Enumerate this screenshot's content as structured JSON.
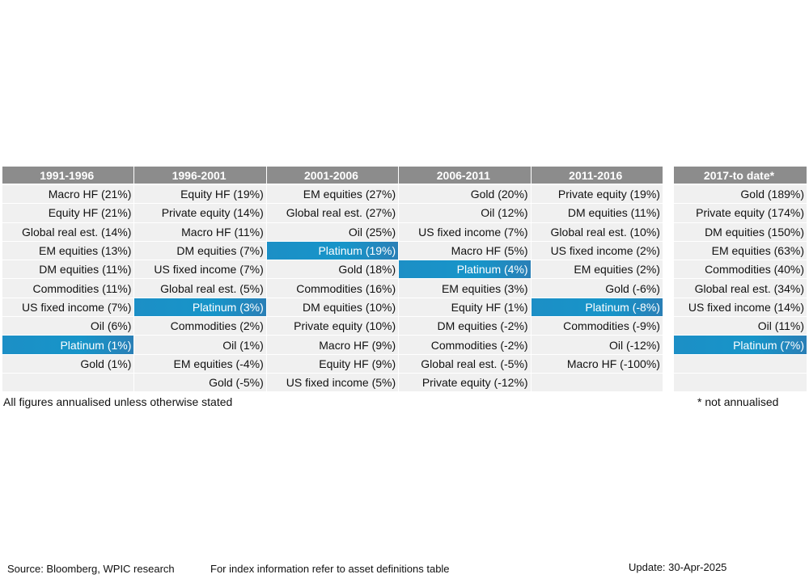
{
  "chart_data": {
    "type": "table",
    "columns": [
      {
        "period": "1991-1996",
        "entries": [
          {
            "label": "Macro HF (21%)",
            "asset": "Macro HF",
            "value": 21
          },
          {
            "label": "Equity HF (21%)",
            "asset": "Equity HF",
            "value": 21
          },
          {
            "label": "Global real est. (14%)",
            "asset": "Global real est.",
            "value": 14
          },
          {
            "label": "EM equities (13%)",
            "asset": "EM equities",
            "value": 13
          },
          {
            "label": "DM equities (11%)",
            "asset": "DM equities",
            "value": 11
          },
          {
            "label": "Commodities (11%)",
            "asset": "Commodities",
            "value": 11
          },
          {
            "label": "US fixed income (7%)",
            "asset": "US fixed income",
            "value": 7
          },
          {
            "label": "Oil (6%)",
            "asset": "Oil",
            "value": 6
          },
          {
            "label": "Platinum (1%)",
            "asset": "Platinum",
            "value": 1,
            "highlight": true
          },
          {
            "label": "Gold (1%)",
            "asset": "Gold",
            "value": 1
          }
        ]
      },
      {
        "period": "1996-2001",
        "entries": [
          {
            "label": "Equity HF (19%)",
            "asset": "Equity HF",
            "value": 19
          },
          {
            "label": "Private equity (14%)",
            "asset": "Private equity",
            "value": 14
          },
          {
            "label": "Macro HF (11%)",
            "asset": "Macro HF",
            "value": 11
          },
          {
            "label": "DM equities (7%)",
            "asset": "DM equities",
            "value": 7
          },
          {
            "label": "US fixed income (7%)",
            "asset": "US fixed income",
            "value": 7
          },
          {
            "label": "Global real est. (5%)",
            "asset": "Global real est.",
            "value": 5
          },
          {
            "label": "Platinum (3%)",
            "asset": "Platinum",
            "value": 3,
            "highlight": true
          },
          {
            "label": "Commodities (2%)",
            "asset": "Commodities",
            "value": 2
          },
          {
            "label": "Oil (1%)",
            "asset": "Oil",
            "value": 1
          },
          {
            "label": "EM equities (-4%)",
            "asset": "EM equities",
            "value": -4
          },
          {
            "label": "Gold (-5%)",
            "asset": "Gold",
            "value": -5
          }
        ]
      },
      {
        "period": "2001-2006",
        "entries": [
          {
            "label": "EM equities (27%)",
            "asset": "EM equities",
            "value": 27
          },
          {
            "label": "Global real est. (27%)",
            "asset": "Global real est.",
            "value": 27
          },
          {
            "label": "Oil (25%)",
            "asset": "Oil",
            "value": 25
          },
          {
            "label": "Platinum (19%)",
            "asset": "Platinum",
            "value": 19,
            "highlight": true
          },
          {
            "label": "Gold (18%)",
            "asset": "Gold",
            "value": 18
          },
          {
            "label": "Commodities (16%)",
            "asset": "Commodities",
            "value": 16
          },
          {
            "label": "DM equities (10%)",
            "asset": "DM equities",
            "value": 10
          },
          {
            "label": "Private equity (10%)",
            "asset": "Private equity",
            "value": 10
          },
          {
            "label": "Macro HF (9%)",
            "asset": "Macro HF",
            "value": 9
          },
          {
            "label": "Equity HF (9%)",
            "asset": "Equity HF",
            "value": 9
          },
          {
            "label": "US fixed income (5%)",
            "asset": "US fixed income",
            "value": 5
          }
        ]
      },
      {
        "period": "2006-2011",
        "entries": [
          {
            "label": "Gold (20%)",
            "asset": "Gold",
            "value": 20
          },
          {
            "label": "Oil (12%)",
            "asset": "Oil",
            "value": 12
          },
          {
            "label": "US fixed income (7%)",
            "asset": "US fixed income",
            "value": 7
          },
          {
            "label": "Macro HF (5%)",
            "asset": "Macro HF",
            "value": 5
          },
          {
            "label": "Platinum (4%)",
            "asset": "Platinum",
            "value": 4,
            "highlight": true
          },
          {
            "label": "EM equities (3%)",
            "asset": "EM equities",
            "value": 3
          },
          {
            "label": "Equity HF (1%)",
            "asset": "Equity HF",
            "value": 1
          },
          {
            "label": "DM equities (-2%)",
            "asset": "DM equities",
            "value": -2
          },
          {
            "label": "Commodities (-2%)",
            "asset": "Commodities",
            "value": -2
          },
          {
            "label": "Global real est. (-5%)",
            "asset": "Global real est.",
            "value": -5
          },
          {
            "label": "Private equity (-12%)",
            "asset": "Private equity",
            "value": -12
          }
        ]
      },
      {
        "period": "2011-2016",
        "entries": [
          {
            "label": "Private equity (19%)",
            "asset": "Private equity",
            "value": 19
          },
          {
            "label": "DM equities (11%)",
            "asset": "DM equities",
            "value": 11
          },
          {
            "label": "Global real est. (10%)",
            "asset": "Global real est.",
            "value": 10
          },
          {
            "label": "US fixed income (2%)",
            "asset": "US fixed income",
            "value": 2
          },
          {
            "label": "EM equities (2%)",
            "asset": "EM equities",
            "value": 2
          },
          {
            "label": "Gold (-6%)",
            "asset": "Gold",
            "value": -6
          },
          {
            "label": "Platinum (-8%)",
            "asset": "Platinum",
            "value": -8,
            "highlight": true
          },
          {
            "label": "Commodities (-9%)",
            "asset": "Commodities",
            "value": -9
          },
          {
            "label": "Oil (-12%)",
            "asset": "Oil",
            "value": -12
          },
          {
            "label": "Macro HF (-100%)",
            "asset": "Macro HF",
            "value": -100
          }
        ]
      }
    ],
    "side_column": {
      "period": "2017-to date*",
      "entries": [
        {
          "label": "Gold (189%)",
          "asset": "Gold",
          "value": 189
        },
        {
          "label": "Private equity (174%)",
          "asset": "Private equity",
          "value": 174
        },
        {
          "label": "DM equities (150%)",
          "asset": "DM equities",
          "value": 150
        },
        {
          "label": "EM equities (63%)",
          "asset": "EM equities",
          "value": 63
        },
        {
          "label": "Commodities (40%)",
          "asset": "Commodities",
          "value": 40
        },
        {
          "label": "Global real est. (34%)",
          "asset": "Global real est.",
          "value": 34
        },
        {
          "label": "US fixed income (14%)",
          "asset": "US fixed income",
          "value": 14
        },
        {
          "label": "Oil (11%)",
          "asset": "Oil",
          "value": 11
        },
        {
          "label": "Platinum (7%)",
          "asset": "Platinum",
          "value": 7,
          "highlight": true
        }
      ]
    },
    "row_count": 11,
    "colors": {
      "header_bg": "#8c8c8c",
      "cell_bg": "#f0f0f0",
      "highlight_bg": "#1a8fc6",
      "highlight_text": "#ffffff"
    }
  },
  "notes": {
    "left": "All figures annualised unless otherwise stated",
    "right": "* not annualised"
  },
  "footer": {
    "source": "Source: Bloomberg, WPIC research",
    "index_info": "For index information refer to asset definitions table",
    "update": "Update: 30-Apr-2025"
  }
}
